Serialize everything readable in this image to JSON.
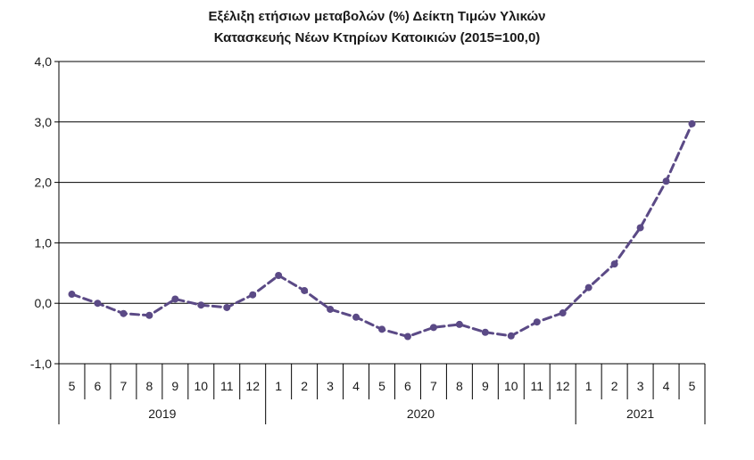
{
  "title_line1": "Εξέλιξη ετήσιων μεταβολών (%) Δείκτη Τιμών Υλικών",
  "title_line2": "Κατασκευής Νέων Κτηρίων Κατοικιών (2015=100,0)",
  "chart_data": {
    "type": "line",
    "title": "Εξέλιξη ετήσιων μεταβολών (%) Δείκτη Τιμών Υλικών Κατασκευής Νέων Κτηρίων Κατοικιών (2015=100,0)",
    "categories": [
      "5",
      "6",
      "7",
      "8",
      "9",
      "10",
      "11",
      "12",
      "1",
      "2",
      "3",
      "4",
      "5",
      "6",
      "7",
      "8",
      "9",
      "10",
      "11",
      "12",
      "1",
      "2",
      "3",
      "4",
      "5"
    ],
    "groups": [
      {
        "label": "2019",
        "start": 0,
        "count": 8
      },
      {
        "label": "2020",
        "start": 8,
        "count": 12
      },
      {
        "label": "2021",
        "start": 20,
        "count": 5
      }
    ],
    "series": [
      {
        "values": [
          0.15,
          0.0,
          -0.17,
          -0.2,
          0.07,
          -0.03,
          -0.07,
          0.14,
          0.46,
          0.21,
          -0.1,
          -0.23,
          -0.43,
          -0.55,
          -0.4,
          -0.35,
          -0.48,
          -0.54,
          -0.31,
          -0.16,
          0.26,
          0.65,
          1.25,
          2.02,
          2.97
        ]
      }
    ],
    "yticks": [
      "4,0",
      "3,0",
      "2,0",
      "1,0",
      "0,0",
      "-1,0"
    ],
    "ylim": [
      -1,
      4
    ],
    "grid": true,
    "line_style": "dashed",
    "color": "#5b4a86"
  }
}
